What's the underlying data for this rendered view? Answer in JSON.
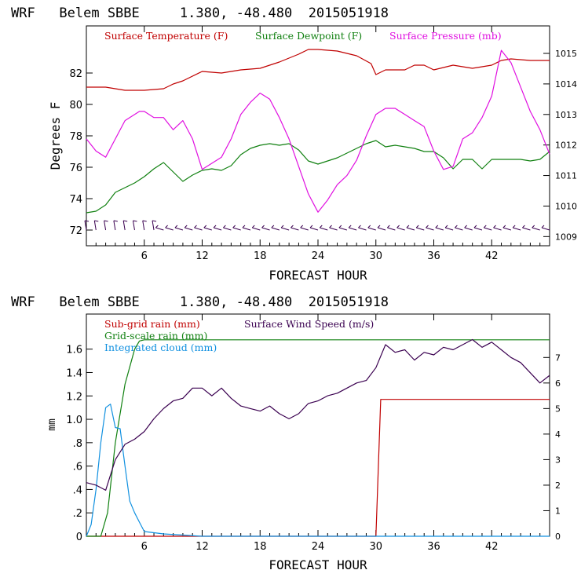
{
  "chart_data": [
    {
      "type": "line",
      "title": "WRF   Belem SBBE     1.380, -48.480  2015051918",
      "xlabel": "FORECAST HOUR",
      "ylabel": "Degrees F",
      "xlim": [
        0,
        48
      ],
      "ylim": [
        71,
        85
      ],
      "y2lim": [
        1008.7,
        1015.9
      ],
      "x_ticks": [
        "6",
        "12",
        "18",
        "24",
        "30",
        "36",
        "42"
      ],
      "y_ticks": [
        "72",
        "74",
        "76",
        "78",
        "80",
        "82"
      ],
      "y2_ticks": [
        "1009",
        "1010",
        "1011",
        "1012",
        "1013",
        "1014",
        "1015"
      ],
      "legend": [
        "Surface Temperature (F)",
        "Surface Dewpoint (F)",
        "Surface Pressure (mb)"
      ],
      "series": [
        {
          "name": "Surface Temperature (F)",
          "color": "#c00000",
          "axis": "left",
          "x": [
            0,
            2,
            4,
            6,
            8,
            9,
            10,
            12,
            14,
            16,
            18,
            20,
            22,
            23,
            24,
            26,
            28,
            29.5,
            30,
            31,
            32,
            33,
            34,
            35,
            36,
            38,
            40,
            42,
            43,
            44,
            46,
            48
          ],
          "y": [
            81.1,
            81.1,
            80.9,
            80.9,
            81.0,
            81.3,
            81.5,
            82.1,
            82.0,
            82.2,
            82.3,
            82.7,
            83.2,
            83.5,
            83.5,
            83.4,
            83.1,
            82.6,
            81.9,
            82.2,
            82.2,
            82.2,
            82.5,
            82.5,
            82.2,
            82.5,
            82.3,
            82.5,
            82.8,
            82.9,
            82.8,
            82.8
          ]
        },
        {
          "name": "Surface Dewpoint (F)",
          "color": "#108010",
          "axis": "left",
          "x": [
            0,
            1,
            2,
            3,
            4,
            5,
            6,
            7,
            8,
            9,
            10,
            11,
            12,
            13,
            14,
            15,
            16,
            17,
            18,
            19,
            20,
            21,
            22,
            23,
            24,
            25,
            26,
            27,
            28,
            29,
            30,
            31,
            32,
            33,
            34,
            35,
            36,
            37,
            38,
            39,
            40,
            41,
            42,
            43,
            44,
            45,
            46,
            47,
            48
          ],
          "y": [
            73.1,
            73.2,
            73.6,
            74.4,
            74.7,
            75.0,
            75.4,
            75.9,
            76.3,
            75.7,
            75.1,
            75.5,
            75.8,
            75.9,
            75.8,
            76.1,
            76.8,
            77.2,
            77.4,
            77.5,
            77.4,
            77.5,
            77.1,
            76.4,
            76.2,
            76.4,
            76.6,
            76.9,
            77.2,
            77.5,
            77.7,
            77.3,
            77.4,
            77.3,
            77.2,
            77.0,
            77.0,
            76.6,
            75.9,
            76.5,
            76.5,
            75.9,
            76.5,
            76.5,
            76.5,
            76.5,
            76.4,
            76.5,
            77.0
          ]
        },
        {
          "name": "Surface Pressure (mb)",
          "color": "#e010e0",
          "axis": "right",
          "x": [
            0,
            1,
            2,
            3,
            4,
            5,
            5.5,
            6,
            7,
            8,
            9,
            10,
            11,
            12,
            13,
            14,
            15,
            16,
            17,
            18,
            19,
            20,
            21,
            22,
            23,
            24,
            25,
            26,
            27,
            28,
            29,
            30,
            31,
            32,
            33,
            34,
            35,
            36,
            37,
            38,
            39,
            40,
            41,
            42,
            43,
            44,
            45,
            46,
            47,
            48
          ],
          "y": [
            1012.2,
            1011.8,
            1011.6,
            1012.2,
            1012.8,
            1013.0,
            1013.1,
            1013.1,
            1012.9,
            1012.9,
            1012.5,
            1012.8,
            1012.2,
            1011.2,
            1011.4,
            1011.6,
            1012.2,
            1013.0,
            1013.4,
            1013.7,
            1013.5,
            1012.9,
            1012.2,
            1011.3,
            1010.4,
            1009.8,
            1010.2,
            1010.7,
            1011.0,
            1011.5,
            1012.3,
            1013.0,
            1013.2,
            1013.2,
            1013.0,
            1012.8,
            1012.6,
            1011.8,
            1011.2,
            1011.3,
            1012.2,
            1012.4,
            1012.9,
            1013.6,
            1015.1,
            1014.7,
            1013.9,
            1013.1,
            1012.5,
            1011.7
          ]
        }
      ],
      "wind_barbs": {
        "y": 72,
        "hours": [
          0,
          1,
          2,
          3,
          4,
          5,
          6,
          7,
          8,
          9,
          10,
          11,
          12,
          13,
          14,
          15,
          16,
          17,
          18,
          19,
          20,
          21,
          22,
          23,
          24,
          25,
          26,
          27,
          28,
          29,
          30,
          31,
          32,
          33,
          34,
          35,
          36,
          37,
          38,
          39,
          40,
          41,
          42,
          43,
          44,
          45,
          46,
          47,
          48
        ]
      }
    },
    {
      "type": "line",
      "title": "WRF   Belem SBBE     1.380, -48.480  2015051918",
      "xlabel": "FORECAST HOUR",
      "ylabel": "mm",
      "xlim": [
        0,
        48
      ],
      "ylim": [
        0,
        1.9
      ],
      "y2lim": [
        0,
        8.7
      ],
      "x_ticks": [
        "6",
        "12",
        "18",
        "24",
        "30",
        "36",
        "42"
      ],
      "y_ticks": [
        "0",
        ".2",
        ".4",
        ".6",
        ".8",
        "1.0",
        "1.2",
        "1.4",
        "1.6"
      ],
      "y2_ticks": [
        "0",
        "1",
        "2",
        "3",
        "4",
        "5",
        "6",
        "7"
      ],
      "legend": [
        "Sub-grid rain (mm)",
        "Grid-scale rain (mm)",
        "Integrated cloud (mm)",
        "Surface Wind Speed (m/s)"
      ],
      "series": [
        {
          "name": "Sub-grid rain (mm)",
          "color": "#c00000",
          "axis": "left",
          "x": [
            0,
            30,
            30.5,
            48
          ],
          "y": [
            0,
            0,
            1.17,
            1.17
          ]
        },
        {
          "name": "Grid-scale rain (mm)",
          "color": "#108010",
          "axis": "left",
          "x": [
            0,
            1.5,
            2.2,
            3,
            4,
            5,
            5.5,
            6,
            7,
            48
          ],
          "y": [
            0,
            0,
            0.2,
            0.8,
            1.3,
            1.6,
            1.67,
            1.68,
            1.68,
            1.68
          ]
        },
        {
          "name": "Integrated cloud (mm)",
          "color": "#1090e0",
          "axis": "left",
          "x": [
            0,
            0.5,
            1,
            1.5,
            2,
            2.5,
            3,
            3.5,
            4,
            4.5,
            5,
            5.5,
            6,
            7,
            8,
            10,
            12,
            48
          ],
          "y": [
            0,
            0.1,
            0.4,
            0.8,
            1.1,
            1.13,
            0.93,
            0.92,
            0.6,
            0.3,
            0.2,
            0.12,
            0.04,
            0.03,
            0.02,
            0.01,
            0,
            0
          ]
        },
        {
          "name": "Surface Wind Speed (m/s)",
          "color": "#3a0050",
          "axis": "right",
          "x": [
            0,
            1,
            2,
            3,
            4,
            5,
            6,
            7,
            8,
            9,
            10,
            11,
            12,
            13,
            14,
            15,
            16,
            17,
            18,
            19,
            20,
            21,
            22,
            23,
            24,
            25,
            26,
            27,
            28,
            29,
            30,
            31,
            32,
            33,
            34,
            35,
            36,
            37,
            38,
            39,
            40,
            41,
            42,
            43,
            44,
            45,
            46,
            47,
            48
          ],
          "y": [
            2.1,
            2.0,
            1.8,
            3.0,
            3.6,
            3.8,
            4.1,
            4.6,
            5.0,
            5.3,
            5.4,
            5.8,
            5.8,
            5.5,
            5.8,
            5.4,
            5.1,
            5.0,
            4.9,
            5.1,
            4.8,
            4.6,
            4.8,
            5.2,
            5.3,
            5.5,
            5.6,
            5.8,
            6.0,
            6.1,
            6.6,
            7.5,
            7.2,
            7.3,
            6.9,
            7.2,
            7.1,
            7.4,
            7.3,
            7.5,
            7.7,
            7.4,
            7.6,
            7.3,
            7.0,
            6.8,
            6.4,
            6.0,
            6.3
          ]
        }
      ]
    }
  ]
}
